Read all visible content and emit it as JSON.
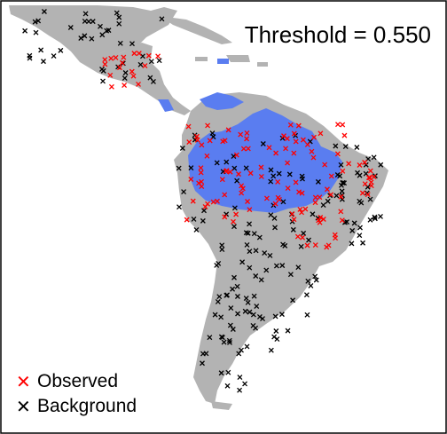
{
  "threshold_label": "Threshold = 0.550",
  "legend": {
    "items": [
      {
        "label": "Observed",
        "color": "#ff0000"
      },
      {
        "label": "Background",
        "color": "#000000"
      }
    ]
  },
  "colors": {
    "land": "#b3b3b3",
    "predicted": "#5a7df0",
    "observed": "#ff0000",
    "background": "#000000",
    "sea": "#ffffff"
  }
}
